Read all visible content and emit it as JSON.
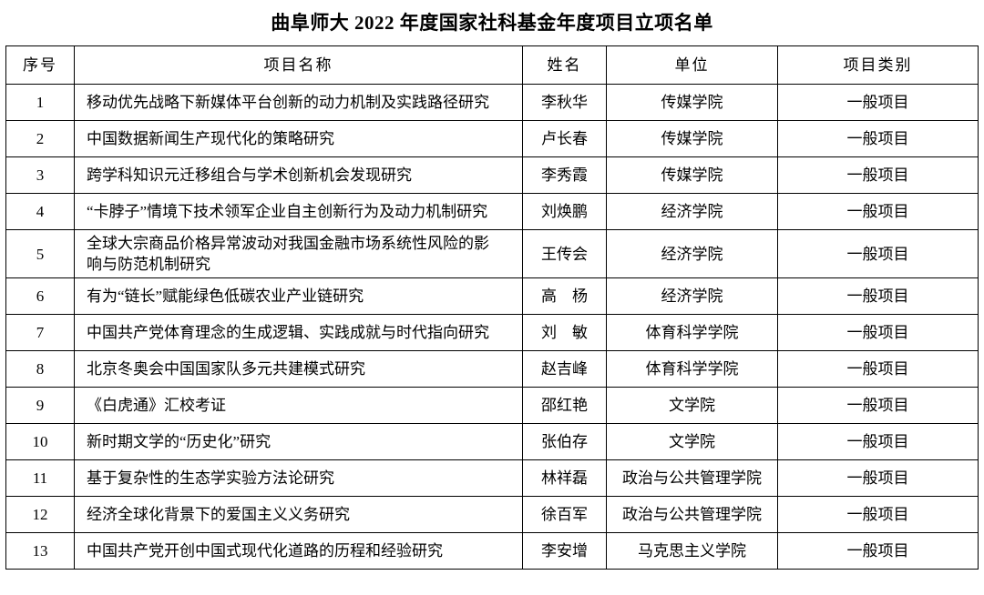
{
  "title": "曲阜师大 2022 年度国家社科基金年度项目立项名单",
  "table": {
    "headers": {
      "index": "序号",
      "project": "项目名称",
      "name": "姓名",
      "unit": "单位",
      "category": "项目类别"
    },
    "rows": [
      {
        "index": "1",
        "project": "移动优先战略下新媒体平台创新的动力机制及实践路径研究",
        "name": "李秋华",
        "unit": "传媒学院",
        "category": "一般项目"
      },
      {
        "index": "2",
        "project": "中国数据新闻生产现代化的策略研究",
        "name": "卢长春",
        "unit": "传媒学院",
        "category": "一般项目"
      },
      {
        "index": "3",
        "project": "跨学科知识元迁移组合与学术创新机会发现研究",
        "name": "李秀霞",
        "unit": "传媒学院",
        "category": "一般项目"
      },
      {
        "index": "4",
        "project": "“卡脖子”情境下技术领军企业自主创新行为及动力机制研究",
        "name": "刘焕鹏",
        "unit": "经济学院",
        "category": "一般项目"
      },
      {
        "index": "5",
        "project": "全球大宗商品价格异常波动对我国金融市场系统性风险的影响与防范机制研究",
        "name": "王传会",
        "unit": "经济学院",
        "category": "一般项目"
      },
      {
        "index": "6",
        "project": "有为“链长”赋能绿色低碳农业产业链研究",
        "name": "高　杨",
        "unit": "经济学院",
        "category": "一般项目"
      },
      {
        "index": "7",
        "project": "中国共产党体育理念的生成逻辑、实践成就与时代指向研究",
        "name": "刘　敏",
        "unit": "体育科学学院",
        "category": "一般项目"
      },
      {
        "index": "8",
        "project": "北京冬奥会中国国家队多元共建模式研究",
        "name": "赵吉峰",
        "unit": "体育科学学院",
        "category": "一般项目"
      },
      {
        "index": "9",
        "project": "《白虎通》汇校考证",
        "name": "邵红艳",
        "unit": "文学院",
        "category": "一般项目"
      },
      {
        "index": "10",
        "project": "新时期文学的“历史化”研究",
        "name": "张伯存",
        "unit": "文学院",
        "category": "一般项目"
      },
      {
        "index": "11",
        "project": "基于复杂性的生态学实验方法论研究",
        "name": "林祥磊",
        "unit": "政治与公共管理学院",
        "category": "一般项目"
      },
      {
        "index": "12",
        "project": "经济全球化背景下的爱国主义义务研究",
        "name": "徐百军",
        "unit": "政治与公共管理学院",
        "category": "一般项目"
      },
      {
        "index": "13",
        "project": "中国共产党开创中国式现代化道路的历程和经验研究",
        "name": "李安增",
        "unit": "马克思主义学院",
        "category": "一般项目"
      }
    ]
  }
}
